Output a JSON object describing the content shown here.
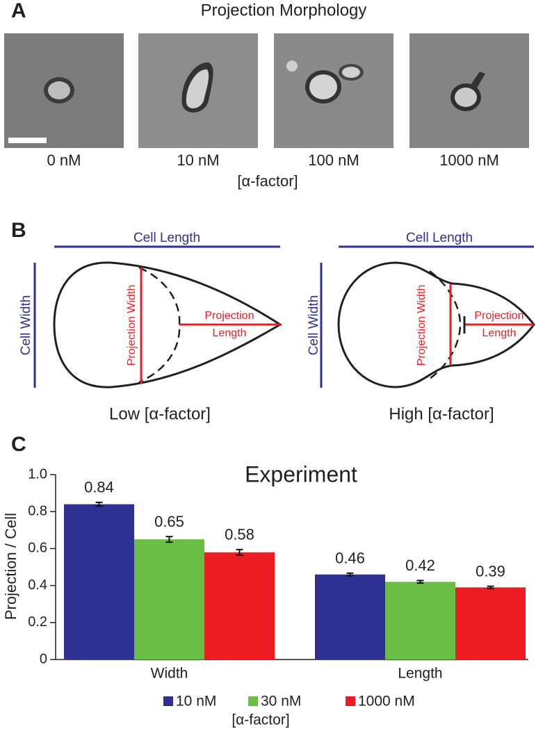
{
  "panel_a": {
    "label": "A",
    "title": "Projection Morphology",
    "images": [
      "0 nM",
      "10 nM",
      "100 nM",
      "1000 nM"
    ],
    "axis_label": "[α-factor]"
  },
  "panel_b": {
    "label": "B",
    "diagrams": [
      {
        "cell_length": "Cell Length",
        "cell_width": "Cell Width",
        "projection_width": "Projection Width",
        "projection_length": [
          "Projection",
          "Length"
        ],
        "caption": "Low [α-factor]"
      },
      {
        "cell_length": "Cell Length",
        "cell_width": "Cell Width",
        "projection_width": "Projection Width",
        "projection_length": [
          "Projection",
          "Length"
        ],
        "caption": "High [α-factor]"
      }
    ]
  },
  "chart_data": {
    "type": "bar",
    "panel_label": "C",
    "title": "Experiment",
    "y_label": "Projection / Cell",
    "categories": [
      "Width",
      "Length"
    ],
    "series": [
      {
        "name": "10 nM",
        "color": "#2e3192",
        "values": [
          0.84,
          0.46
        ],
        "errors": [
          0.01,
          0.007
        ]
      },
      {
        "name": "30 nM",
        "color": "#6abd45",
        "values": [
          0.65,
          0.42
        ],
        "errors": [
          0.015,
          0.007
        ]
      },
      {
        "name": "1000 nM",
        "color": "#ed1c24",
        "values": [
          0.58,
          0.39
        ],
        "errors": [
          0.015,
          0.006
        ]
      }
    ],
    "legend_title": "[α-factor]",
    "ylim": [
      0,
      1
    ],
    "yticks": [
      0,
      0.2,
      0.4,
      0.6,
      0.8,
      {
        "value": 1,
        "label": "1.0"
      }
    ],
    "grid": false
  }
}
